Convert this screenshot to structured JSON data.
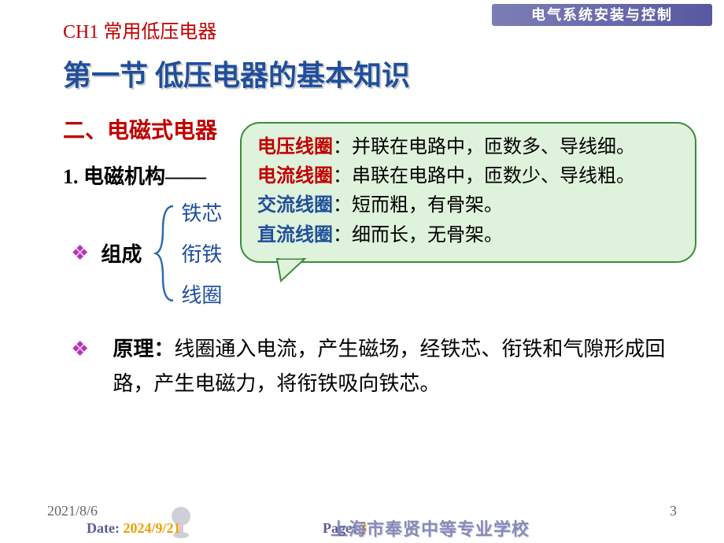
{
  "colors": {
    "chapter": "#c00000",
    "section_title": "#1f4e9c",
    "subsection": "#c00000",
    "bullet": "#c030c0",
    "comp_item": "#1f4e9c",
    "callout_bg": "#dff2db",
    "callout_border": "#3c8c3c",
    "voltage_label": "#c00000",
    "current_label": "#c00000",
    "ac_label": "#1f4e9c",
    "dc_label": "#1f4e9c",
    "callout_text": "#000000",
    "footer_accent": "#f0a000",
    "brace": "#2b6cb0"
  },
  "chapter": "CH1  常用低压电器",
  "section_title": "第一节  低压电器的基本知识",
  "subsection": "二、电磁式电器",
  "numbered": "1. 电磁机构——",
  "composition_bullet": "❖",
  "composition_label": "组成",
  "composition_items": [
    "铁芯",
    "衔铁",
    "线圈"
  ],
  "principle_bullet": "❖",
  "principle_label": "原理：",
  "principle_text": "线圈通入电流，产生磁场，经铁芯、衔铁和气隙形成回路，产生电磁力，将衔铁吸向铁芯。",
  "callout": {
    "lines": [
      {
        "label": "电压线圈",
        "labelColorKey": "voltage_label",
        "rest": "：并联在电路中，匝数多、导线细。"
      },
      {
        "label": "电流线圈",
        "labelColorKey": "current_label",
        "rest": "：串联在电路中，匝数少、导线粗。"
      },
      {
        "label": "交流线圈",
        "labelColorKey": "ac_label",
        "rest": "：短而粗，有骨架。"
      },
      {
        "label": "直流线圈",
        "labelColorKey": "dc_label",
        "rest": "：细而长，无骨架。"
      }
    ]
  },
  "corner_graphic_text": "电气系统安装与控制",
  "footer": {
    "date1": "2021/8/6",
    "date_label": "Date: ",
    "date_value": "2024/9/21",
    "page_label": "Page: ",
    "page_value": "3",
    "school": "上海市奉贤中等专业学校",
    "slide_num": "3"
  }
}
